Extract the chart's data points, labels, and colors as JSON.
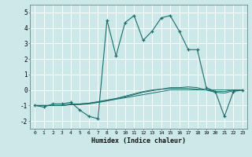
{
  "xlabel": "Humidex (Indice chaleur)",
  "background_color": "#cce8e8",
  "grid_color": "#ffffff",
  "line_color": "#1a6e6a",
  "xlim": [
    -0.5,
    23.5
  ],
  "ylim": [
    -2.5,
    5.5
  ],
  "xticks": [
    0,
    1,
    2,
    3,
    4,
    5,
    6,
    7,
    8,
    9,
    10,
    11,
    12,
    13,
    14,
    15,
    16,
    17,
    18,
    19,
    20,
    21,
    22,
    23
  ],
  "yticks": [
    -2,
    -1,
    0,
    1,
    2,
    3,
    4,
    5
  ],
  "main_series": {
    "x": [
      0,
      1,
      2,
      3,
      4,
      5,
      6,
      7,
      8,
      9,
      10,
      11,
      12,
      13,
      14,
      15,
      16,
      17,
      18,
      19,
      20,
      21,
      22,
      23
    ],
    "y": [
      -1.0,
      -1.1,
      -0.9,
      -0.9,
      -0.8,
      -1.3,
      -1.7,
      -1.85,
      4.5,
      2.2,
      4.35,
      4.8,
      3.2,
      3.8,
      4.65,
      4.8,
      3.8,
      2.6,
      2.6,
      0.15,
      -0.1,
      -1.7,
      -0.1,
      0.0
    ]
  },
  "flat_lines": [
    {
      "x": [
        0,
        1,
        2,
        3,
        4,
        5,
        6,
        7,
        8,
        9,
        10,
        11,
        12,
        13,
        14,
        15,
        16,
        17,
        18,
        19,
        20,
        21,
        22,
        23
      ],
      "y": [
        -1.0,
        -1.0,
        -1.0,
        -1.0,
        -0.95,
        -0.9,
        -0.85,
        -0.8,
        -0.7,
        -0.6,
        -0.5,
        -0.4,
        -0.3,
        -0.2,
        -0.1,
        0.0,
        0.0,
        0.0,
        0.0,
        0.0,
        0.0,
        0.0,
        0.0,
        0.0
      ]
    },
    {
      "x": [
        0,
        1,
        2,
        3,
        4,
        5,
        6,
        7,
        8,
        9,
        10,
        11,
        12,
        13,
        14,
        15,
        16,
        17,
        18,
        19,
        20,
        21,
        22,
        23
      ],
      "y": [
        -1.0,
        -1.0,
        -1.0,
        -1.0,
        -0.9,
        -0.9,
        -0.85,
        -0.75,
        -0.65,
        -0.55,
        -0.45,
        -0.3,
        -0.15,
        -0.05,
        0.05,
        0.1,
        0.1,
        0.1,
        0.05,
        0.0,
        -0.1,
        -0.1,
        0.0,
        0.0
      ]
    },
    {
      "x": [
        0,
        1,
        2,
        3,
        4,
        5,
        6,
        7,
        8,
        9,
        10,
        11,
        12,
        13,
        14,
        15,
        16,
        17,
        18,
        19,
        20,
        21,
        22,
        23
      ],
      "y": [
        -1.0,
        -1.0,
        -1.0,
        -1.0,
        -0.95,
        -0.95,
        -0.9,
        -0.8,
        -0.7,
        -0.55,
        -0.4,
        -0.25,
        -0.1,
        0.0,
        0.05,
        0.15,
        0.15,
        0.2,
        0.15,
        0.0,
        -0.15,
        -0.2,
        -0.05,
        0.0
      ]
    }
  ]
}
